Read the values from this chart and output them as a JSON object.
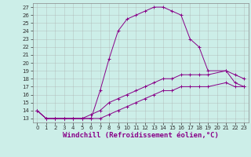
{
  "bg_color": "#cceee8",
  "grid_color": "#aaaaaa",
  "line_color": "#880088",
  "xlim": [
    -0.5,
    23.5
  ],
  "ylim": [
    12.5,
    27.5
  ],
  "xticks": [
    0,
    1,
    2,
    3,
    4,
    5,
    6,
    7,
    8,
    9,
    10,
    11,
    12,
    13,
    14,
    15,
    16,
    17,
    18,
    19,
    20,
    21,
    22,
    23
  ],
  "yticks": [
    13,
    14,
    15,
    16,
    17,
    18,
    19,
    20,
    21,
    22,
    23,
    24,
    25,
    26,
    27
  ],
  "xlabel": "Windchill (Refroidissement éolien,°C)",
  "series": [
    {
      "x": [
        0,
        1,
        2,
        3,
        4,
        5,
        6,
        7,
        8,
        9,
        10,
        11,
        12,
        13,
        14,
        15,
        16,
        17,
        18,
        19,
        21,
        22,
        23
      ],
      "y": [
        14,
        13,
        13,
        13,
        13,
        13,
        13,
        16.5,
        20.5,
        24.0,
        25.5,
        26.0,
        26.5,
        27.0,
        27.0,
        26.5,
        26.0,
        23.0,
        22.0,
        19.0,
        19.0,
        17.5,
        17.0
      ]
    },
    {
      "x": [
        0,
        1,
        2,
        3,
        4,
        5,
        6,
        7,
        8,
        9,
        10,
        11,
        12,
        13,
        14,
        15,
        16,
        17,
        18,
        19,
        21,
        22,
        23
      ],
      "y": [
        14,
        13,
        13,
        13,
        13,
        13,
        13.5,
        14.0,
        15.0,
        15.5,
        16.0,
        16.5,
        17.0,
        17.5,
        18.0,
        18.0,
        18.5,
        18.5,
        18.5,
        18.5,
        19.0,
        18.5,
        18.0
      ]
    },
    {
      "x": [
        0,
        1,
        2,
        3,
        4,
        5,
        6,
        7,
        8,
        9,
        10,
        11,
        12,
        13,
        14,
        15,
        16,
        17,
        18,
        19,
        21,
        22,
        23
      ],
      "y": [
        14,
        13,
        13,
        13,
        13,
        13,
        13.0,
        13.0,
        13.5,
        14.0,
        14.5,
        15.0,
        15.5,
        16.0,
        16.5,
        16.5,
        17.0,
        17.0,
        17.0,
        17.0,
        17.5,
        17.0,
        17.0
      ]
    }
  ],
  "figsize": [
    3.2,
    2.0
  ],
  "dpi": 100,
  "tick_fontsize": 5,
  "label_fontsize": 6.5
}
